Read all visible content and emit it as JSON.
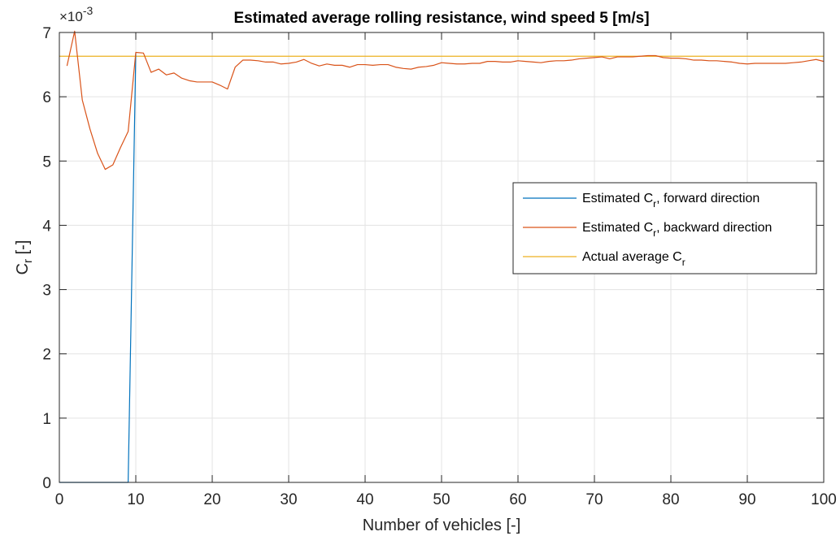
{
  "chart_data": {
    "type": "line",
    "title": "Estimated average rolling resistance, wind speed 5 [m/s]",
    "xlabel": "Number of vehicles [-]",
    "ylabel": {
      "base": "C",
      "sub": "r",
      "suffix": " [-]"
    },
    "y_multiplier": {
      "prefix": "×10",
      "exp": "-3"
    },
    "xlim": [
      0,
      100
    ],
    "ylim": [
      0,
      7
    ],
    "xticks": [
      0,
      10,
      20,
      30,
      40,
      50,
      60,
      70,
      80,
      90,
      100
    ],
    "yticks": [
      0,
      1,
      2,
      3,
      4,
      5,
      6,
      7
    ],
    "grid": true,
    "legend_position": "right",
    "series": [
      {
        "name": {
          "pre": "Estimated C",
          "sub": "r",
          "post": ", forward direction"
        },
        "color": "#0072BD",
        "x": [
          0,
          1,
          2,
          3,
          4,
          5,
          6,
          7,
          8,
          9,
          10
        ],
        "y": [
          0,
          0,
          0,
          0,
          0,
          0,
          0,
          0,
          0,
          0,
          6.68
        ]
      },
      {
        "name": {
          "pre": "Estimated C",
          "sub": "r",
          "post": ", backward direction"
        },
        "color": "#D95319",
        "x": [
          1,
          2,
          3,
          4,
          5,
          6,
          7,
          8,
          9,
          10,
          11,
          12,
          13,
          14,
          15,
          16,
          17,
          18,
          19,
          20,
          21,
          22,
          23,
          24,
          25,
          26,
          27,
          28,
          29,
          30,
          31,
          32,
          33,
          34,
          35,
          36,
          37,
          38,
          39,
          40,
          41,
          42,
          43,
          44,
          45,
          46,
          47,
          48,
          49,
          50,
          51,
          52,
          53,
          54,
          55,
          56,
          57,
          58,
          59,
          60,
          61,
          62,
          63,
          64,
          65,
          66,
          67,
          68,
          69,
          70,
          71,
          72,
          73,
          74,
          75,
          76,
          77,
          78,
          79,
          80,
          81,
          82,
          83,
          84,
          85,
          86,
          87,
          88,
          89,
          90,
          91,
          92,
          93,
          94,
          95,
          96,
          97,
          98,
          99,
          100
        ],
        "y": [
          6.48,
          7.02,
          5.95,
          5.5,
          5.12,
          4.87,
          4.94,
          5.21,
          5.46,
          6.69,
          6.68,
          6.38,
          6.43,
          6.34,
          6.37,
          6.29,
          6.25,
          6.23,
          6.23,
          6.23,
          6.18,
          6.12,
          6.46,
          6.57,
          6.57,
          6.56,
          6.54,
          6.54,
          6.51,
          6.52,
          6.54,
          6.58,
          6.52,
          6.48,
          6.51,
          6.49,
          6.49,
          6.46,
          6.5,
          6.5,
          6.49,
          6.5,
          6.5,
          6.46,
          6.44,
          6.43,
          6.46,
          6.47,
          6.49,
          6.53,
          6.52,
          6.51,
          6.51,
          6.52,
          6.52,
          6.55,
          6.55,
          6.54,
          6.54,
          6.56,
          6.55,
          6.54,
          6.53,
          6.55,
          6.56,
          6.56,
          6.57,
          6.59,
          6.6,
          6.61,
          6.62,
          6.59,
          6.62,
          6.62,
          6.62,
          6.63,
          6.64,
          6.64,
          6.61,
          6.6,
          6.6,
          6.59,
          6.57,
          6.57,
          6.56,
          6.56,
          6.55,
          6.54,
          6.52,
          6.51,
          6.52,
          6.52,
          6.52,
          6.52,
          6.52,
          6.53,
          6.54,
          6.56,
          6.58,
          6.55
        ]
      },
      {
        "name": {
          "pre": "Actual average C",
          "sub": "r",
          "post": ""
        },
        "color": "#EDB120",
        "x": [
          0,
          100
        ],
        "y": [
          6.63,
          6.63
        ]
      }
    ]
  }
}
